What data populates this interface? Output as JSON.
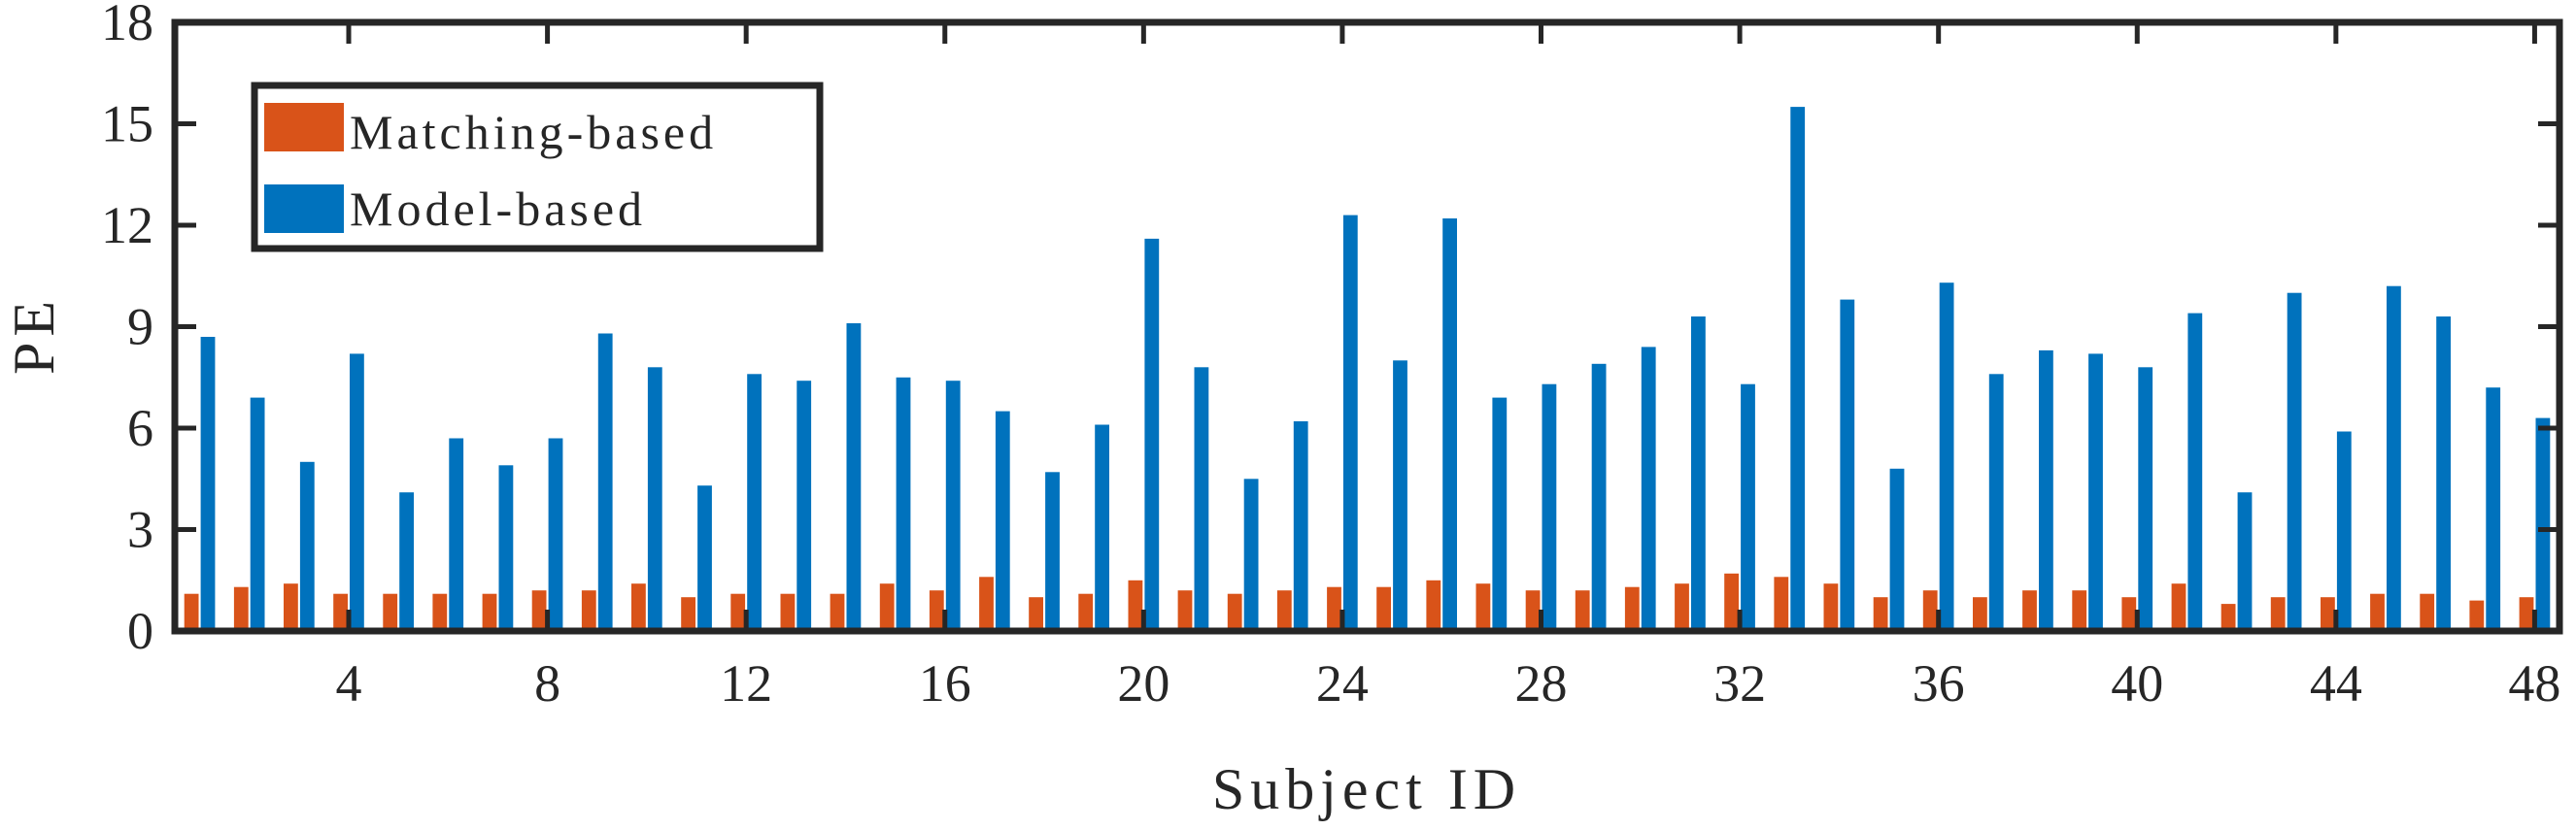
{
  "chart_data": {
    "type": "bar",
    "xlabel": "Subject ID",
    "ylabel": "PE",
    "ylim": [
      0,
      18
    ],
    "xlim": [
      0.5,
      48.5
    ],
    "yticks": [
      0,
      3,
      6,
      9,
      12,
      15,
      18
    ],
    "xticks": [
      4,
      8,
      12,
      16,
      20,
      24,
      28,
      32,
      36,
      40,
      44,
      48
    ],
    "grid": false,
    "legend_position": "top-left",
    "categories": [
      1,
      2,
      3,
      4,
      5,
      6,
      7,
      8,
      9,
      10,
      11,
      12,
      13,
      14,
      15,
      16,
      17,
      18,
      19,
      20,
      21,
      22,
      23,
      24,
      25,
      26,
      27,
      28,
      29,
      30,
      31,
      32,
      33,
      34,
      35,
      36,
      37,
      38,
      39,
      40,
      41,
      42,
      43,
      44,
      45,
      46,
      47,
      48
    ],
    "series": [
      {
        "name": "Matching-based",
        "color": "#D95319",
        "values": [
          1.1,
          1.3,
          1.4,
          1.1,
          1.1,
          1.1,
          1.1,
          1.2,
          1.2,
          1.4,
          1.0,
          1.1,
          1.1,
          1.1,
          1.4,
          1.2,
          1.6,
          1.0,
          1.1,
          1.5,
          1.2,
          1.1,
          1.2,
          1.3,
          1.3,
          1.5,
          1.4,
          1.2,
          1.2,
          1.3,
          1.4,
          1.7,
          1.6,
          1.4,
          1.0,
          1.2,
          1.0,
          1.2,
          1.2,
          1.0,
          1.4,
          0.8,
          1.0,
          1.0,
          1.1,
          1.1,
          0.9,
          1.0
        ]
      },
      {
        "name": "Model-based",
        "color": "#0072BD",
        "values": [
          8.7,
          6.9,
          5.0,
          8.2,
          4.1,
          5.7,
          4.9,
          5.7,
          8.8,
          7.8,
          4.3,
          7.6,
          7.4,
          9.1,
          7.5,
          7.4,
          6.5,
          4.7,
          6.1,
          11.6,
          7.8,
          4.5,
          6.2,
          12.3,
          8.0,
          12.2,
          6.9,
          7.3,
          7.9,
          8.4,
          9.3,
          7.3,
          15.5,
          9.8,
          4.8,
          10.3,
          7.6,
          8.3,
          8.2,
          7.8,
          9.4,
          4.1,
          10.0,
          5.9,
          10.2,
          9.3,
          7.2,
          6.3
        ]
      }
    ]
  },
  "colors": {
    "axes": "#262626",
    "matching": "#D95319",
    "model": "#0072BD"
  }
}
